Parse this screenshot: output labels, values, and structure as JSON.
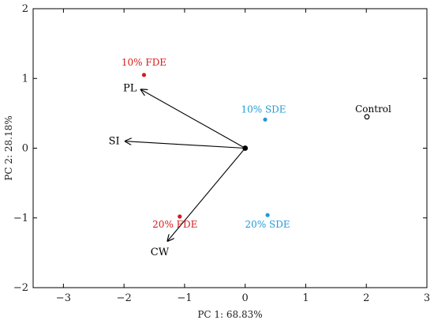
{
  "chart_data": {
    "type": "scatter",
    "title": "",
    "xlabel": "PC 1: 68.83%",
    "ylabel": "PC 2: 28.18%",
    "xlim": [
      -3.5,
      3
    ],
    "ylim": [
      -2,
      2
    ],
    "xticks": [
      "−3",
      "−2",
      "−1",
      "0",
      "1",
      "2",
      "3"
    ],
    "xtick_values": [
      -3,
      -2,
      -1,
      0,
      1,
      2,
      3
    ],
    "yticks": [
      "2",
      "1",
      "0",
      "−1",
      "−2"
    ],
    "ytick_values": [
      2,
      1,
      0,
      -1,
      -2
    ],
    "grid": false,
    "points": [
      {
        "label": "10% FDE",
        "x": -1.67,
        "y": 1.05,
        "color": "#d7191c",
        "marker": "filled"
      },
      {
        "label": "20% FDE",
        "x": -1.08,
        "y": -0.98,
        "color": "#d7191c",
        "marker": "filled"
      },
      {
        "label": "10% SDE",
        "x": 0.33,
        "y": 0.41,
        "color": "#1f9bd7",
        "marker": "filled"
      },
      {
        "label": "20% SDE",
        "x": 0.37,
        "y": -0.96,
        "color": "#1f9bd7",
        "marker": "filled"
      },
      {
        "label": "Control",
        "x": 2.01,
        "y": 0.45,
        "color": "#000000",
        "marker": "open"
      }
    ],
    "vectors": [
      {
        "label": "PL",
        "x": -1.72,
        "y": 0.84
      },
      {
        "label": "SI",
        "x": -1.98,
        "y": 0.1
      },
      {
        "label": "CW",
        "x": -1.28,
        "y": -1.33
      }
    ],
    "origin_marker": {
      "x": 0,
      "y": 0,
      "color": "#000000"
    }
  }
}
